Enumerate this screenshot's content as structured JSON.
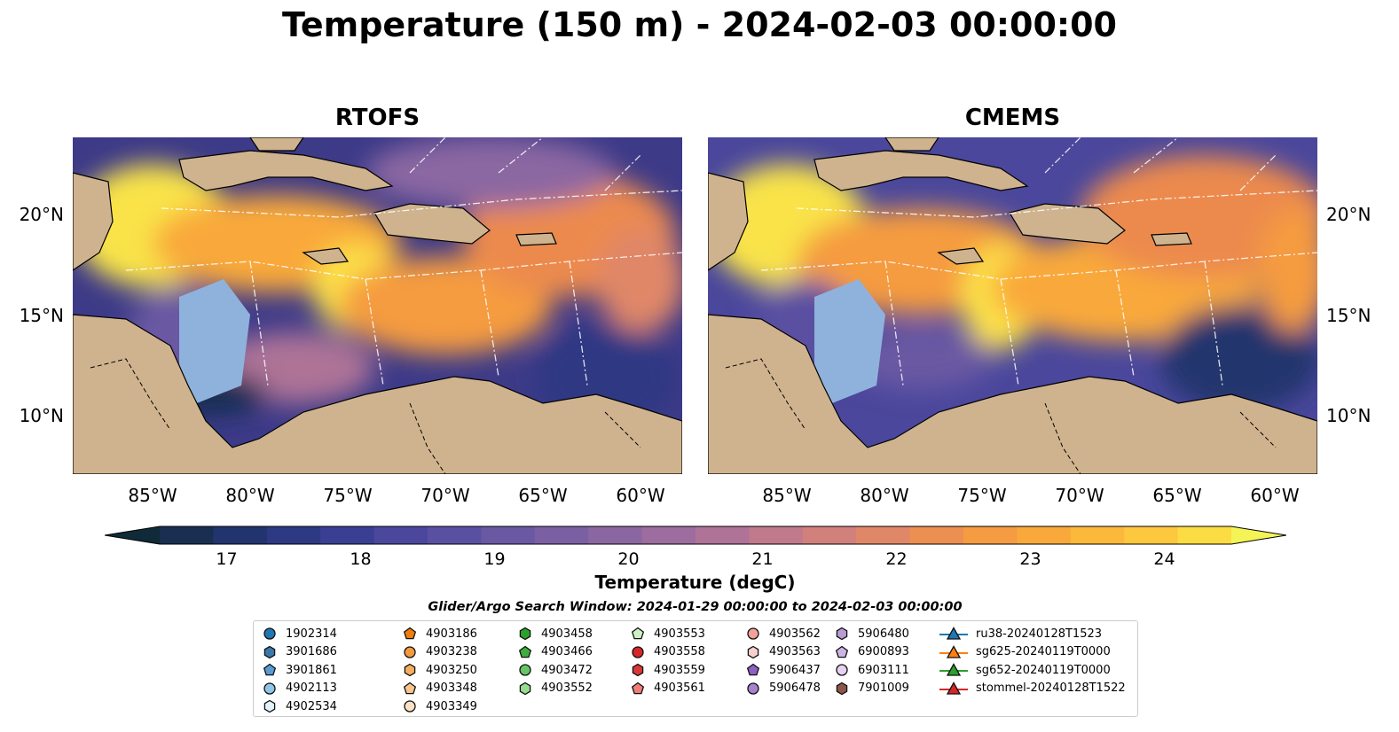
{
  "title": "Temperature (150 m) - 2024-02-03 00:00:00",
  "panels": [
    {
      "title": "RTOFS"
    },
    {
      "title": "CMEMS"
    }
  ],
  "axes": {
    "lat_ticks": [
      "20°N",
      "15°N",
      "10°N"
    ],
    "lon_ticks": [
      "85°W",
      "80°W",
      "75°W",
      "70°W",
      "65°W",
      "60°W"
    ]
  },
  "colorbar": {
    "label": "Temperature (degC)",
    "ticks": [
      "17",
      "18",
      "19",
      "20",
      "21",
      "22",
      "23",
      "24"
    ],
    "range": [
      16.5,
      24.5
    ],
    "colors": [
      "#0f2a38",
      "#182f52",
      "#22346d",
      "#2d3983",
      "#3b3f93",
      "#4a479c",
      "#5a50a1",
      "#6a58a3",
      "#7a60a3",
      "#8b67a2",
      "#9c6d9e",
      "#ae7397",
      "#c07a8c",
      "#d1807c",
      "#e08768",
      "#ec9052",
      "#f59b41",
      "#f9a93b",
      "#fcb83a",
      "#fdc73e",
      "#fbdc43",
      "#f4f456"
    ]
  },
  "search_window": "Glider/Argo Search Window: 2024-01-29 00:00:00 to 2024-02-03 00:00:00",
  "legend": [
    {
      "label": "1902314",
      "marker": "circle",
      "color": "#1f77b4"
    },
    {
      "label": "3901686",
      "marker": "hexagon",
      "color": "#3b77a8"
    },
    {
      "label": "3901861",
      "marker": "pentagon",
      "color": "#5a9bd4"
    },
    {
      "label": "4902113",
      "marker": "circle",
      "color": "#8fc6e8"
    },
    {
      "label": "4902534",
      "marker": "hexagon",
      "color": "#e3f2fb"
    },
    {
      "label": "4903186",
      "marker": "pentagon",
      "color": "#f07d0a"
    },
    {
      "label": "4903238",
      "marker": "circle",
      "color": "#f39a3e"
    },
    {
      "label": "4903250",
      "marker": "hexagon",
      "color": "#f6ad5f"
    },
    {
      "label": "4903348",
      "marker": "pentagon",
      "color": "#f9c48d"
    },
    {
      "label": "4903349",
      "marker": "circle",
      "color": "#fce2c4"
    },
    {
      "label": "4903458",
      "marker": "hexagon",
      "color": "#2ca02c"
    },
    {
      "label": "4903466",
      "marker": "pentagon",
      "color": "#3fae3f"
    },
    {
      "label": "4903472",
      "marker": "circle",
      "color": "#67c467"
    },
    {
      "label": "4903552",
      "marker": "hexagon",
      "color": "#98dc8e"
    },
    {
      "label": "4903553",
      "marker": "pentagon",
      "color": "#ccf2c4"
    },
    {
      "label": "4903558",
      "marker": "circle",
      "color": "#d62728"
    },
    {
      "label": "4903559",
      "marker": "hexagon",
      "color": "#d8383a"
    },
    {
      "label": "4903561",
      "marker": "pentagon",
      "color": "#f07d76"
    },
    {
      "label": "4903562",
      "marker": "circle",
      "color": "#f4a09b"
    },
    {
      "label": "4903563",
      "marker": "hexagon",
      "color": "#f9cfcf"
    },
    {
      "label": "5906437",
      "marker": "pentagon",
      "color": "#8c5fc0"
    },
    {
      "label": "5906478",
      "marker": "circle",
      "color": "#a683cc"
    },
    {
      "label": "5906480",
      "marker": "hexagon",
      "color": "#b99bd6"
    },
    {
      "label": "6900893",
      "marker": "pentagon",
      "color": "#cdb5e3"
    },
    {
      "label": "6903111",
      "marker": "circle",
      "color": "#e6d1f2"
    },
    {
      "label": "7901009",
      "marker": "hexagon",
      "color": "#8c564b"
    },
    {
      "label": "ru38-20240128T1523",
      "marker": "triangle-line",
      "color": "#1f77b4"
    },
    {
      "label": "sg625-20240119T0000",
      "marker": "triangle-line",
      "color": "#ff7f0e"
    },
    {
      "label": "sg652-20240119T0000",
      "marker": "triangle-line",
      "color": "#2ca02c"
    },
    {
      "label": "stommel-20240128T1522",
      "marker": "triangle-line",
      "color": "#d62728"
    }
  ]
}
